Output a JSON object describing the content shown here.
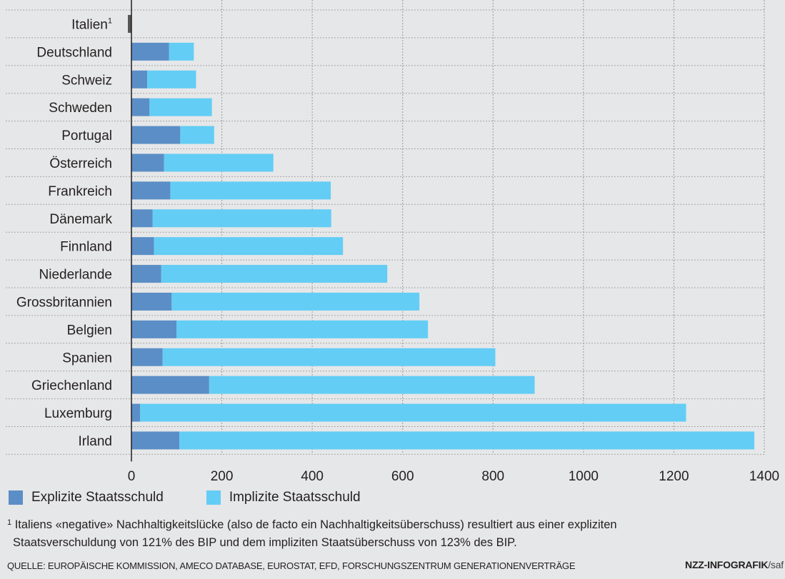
{
  "chart_data": {
    "type": "bar",
    "orientation": "horizontal",
    "stacked": true,
    "categories": [
      "Italien",
      "Deutschland",
      "Schweiz",
      "Schweden",
      "Portugal",
      "Österreich",
      "Frankreich",
      "Dänemark",
      "Finnland",
      "Niederlande",
      "Grossbritannien",
      "Belgien",
      "Spanien",
      "Griechenland",
      "Luxemburg",
      "Irland"
    ],
    "category_sup": [
      "1",
      "",
      "",
      "",
      "",
      "",
      "",
      "",
      "",
      "",
      "",
      "",
      "",
      "",
      "",
      ""
    ],
    "series": [
      {
        "name": "Explizite Staatsschuld",
        "color": "#5b8ec6",
        "values": [
          -2,
          83,
          35,
          40,
          108,
          72,
          86,
          47,
          50,
          66,
          89,
          100,
          69,
          172,
          19,
          106
        ]
      },
      {
        "name": "Implizite Staatsschuld",
        "color": "#63cdf5",
        "values": [
          0,
          55,
          108,
          138,
          75,
          242,
          355,
          395,
          418,
          500,
          548,
          556,
          736,
          720,
          1208,
          1272
        ]
      }
    ],
    "italien_marker_color": "#555555",
    "xlim": [
      0,
      1400
    ],
    "xticks": [
      0,
      200,
      400,
      600,
      800,
      1000,
      1200,
      1400
    ],
    "grid": true,
    "legend_position": "bottom-left"
  },
  "legend": {
    "explicit_label": "Explizite Staatsschuld",
    "implicit_label": "Implizite Staatsschuld"
  },
  "footnote": {
    "marker": "1",
    "line1": " Italiens «negative» Nachhaltigkeitslücke (also de facto ein Nachhaltigkeitsüberschuss) resultiert aus einer expliziten",
    "line2": "Staatsverschuldung von 121% des BIP und dem impliziten Staatsüberschuss von 123% des BIP."
  },
  "source": "QUELLE: EUROPÄISCHE KOMMISSION, AMECO DATABASE, EUROSTAT, EFD, FORSCHUNGSZENTRUM GENERATIONENVERTRÄGE",
  "credit": {
    "brand": "NZZ-INFOGRAFIK",
    "suffix": "/saf"
  }
}
